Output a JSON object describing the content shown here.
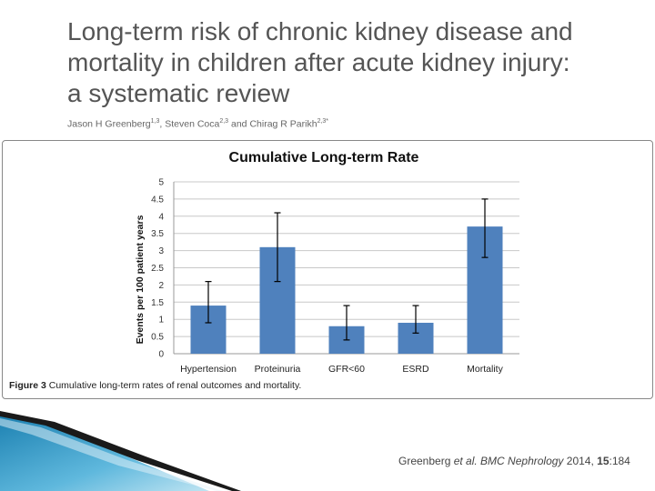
{
  "slide": {
    "title_lines": [
      "Long-term risk of chronic kidney disease and",
      "mortality in children after acute kidney injury:",
      "a systematic review"
    ],
    "authors": [
      {
        "name": "Jason H Greenberg",
        "sup": "1,3",
        "sep": ", "
      },
      {
        "name": "Steven Coca",
        "sup": "2,3",
        "sep": " and "
      },
      {
        "name": "Chirag R Parikh",
        "sup": "2,3*",
        "sep": ""
      }
    ],
    "caption_bold": "Figure 3",
    "caption_text": " Cumulative long-term rates of renal outcomes and mortality.",
    "citation": {
      "author": "Greenberg ",
      "etal": "et al.",
      "journal": " BMC Nephrology",
      "year": " 2014, ",
      "volume": "15",
      "page": ":184"
    }
  },
  "chart_data": {
    "type": "bar",
    "title": "Cumulative Long-term Rate",
    "xlabel": "",
    "ylabel": "Events per 100 patient years",
    "categories": [
      "Hypertension",
      "Proteinuria",
      "GFR<60",
      "ESRD",
      "Mortality"
    ],
    "values": [
      1.4,
      3.1,
      0.8,
      0.9,
      3.7
    ],
    "error_low": [
      0.9,
      2.1,
      0.4,
      0.6,
      2.8
    ],
    "error_high": [
      2.1,
      4.1,
      1.4,
      1.4,
      4.5
    ],
    "ylim": [
      0,
      5
    ],
    "yticks": [
      "0",
      "0.5",
      "1",
      "1.5",
      "2",
      "2.5",
      "3",
      "3.5",
      "4",
      "4.5",
      "5"
    ],
    "ytick_values": [
      0,
      0.5,
      1,
      1.5,
      2,
      2.5,
      3,
      3.5,
      4,
      4.5,
      5
    ],
    "bar_color": "#4f81bd",
    "grid": true
  }
}
